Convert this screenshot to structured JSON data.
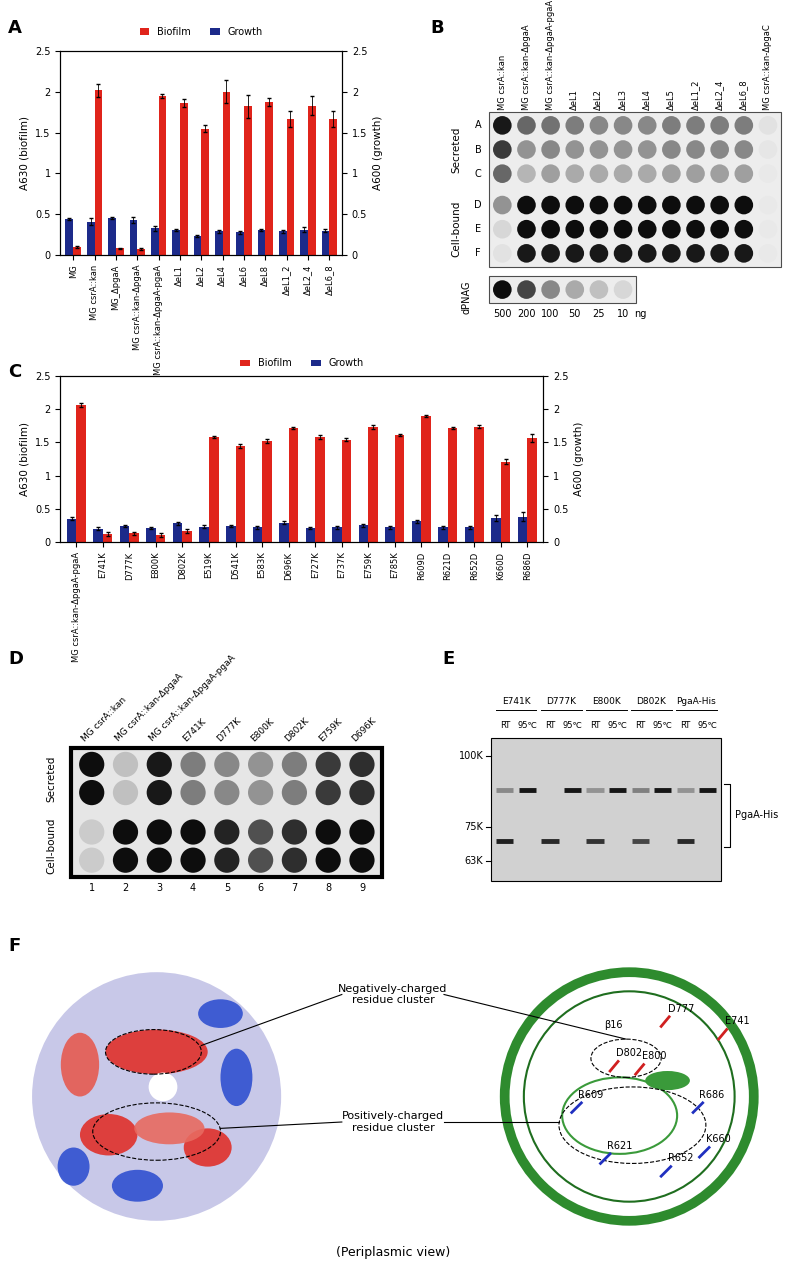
{
  "panel_labels": [
    "A",
    "B",
    "C",
    "D",
    "E",
    "F"
  ],
  "chart_data": [
    {
      "type": "bar",
      "categories": [
        "MG",
        "MG csrA::kan",
        "MG_ΔpgaA",
        "MG csrA::kan-ΔpgaA",
        "MG csrA::kan-ΔpgaA-pgaA",
        "ΔeL1",
        "ΔeL2",
        "ΔeL4",
        "ΔeL6",
        "ΔeL8",
        "ΔeL1_2",
        "ΔeL2_4",
        "ΔeL6_8"
      ],
      "ylabel": "A630 (biofilm)",
      "y2label": "A600 (growth)",
      "ylim": [
        0,
        2.5
      ],
      "yticks": [
        0,
        0.5,
        1,
        1.5,
        2,
        2.5
      ],
      "y2lim": [
        0,
        2.5
      ],
      "y2ticks": [
        0,
        0.5,
        1,
        1.5,
        2,
        2.5
      ],
      "legend": "upper center",
      "series": [
        {
          "name": "Biofilm",
          "color": "#e0241b",
          "values": [
            0.1,
            2.02,
            0.08,
            0.07,
            1.95,
            1.86,
            1.55,
            2.0,
            1.82,
            1.88,
            1.67,
            1.83,
            1.67
          ],
          "errors": [
            0.01,
            0.08,
            0.01,
            0.01,
            0.02,
            0.05,
            0.04,
            0.14,
            0.14,
            0.05,
            0.1,
            0.12,
            0.1
          ]
        },
        {
          "name": "Growth",
          "color": "#1c2a8a",
          "axis": "y2",
          "values": [
            0.44,
            0.41,
            0.45,
            0.43,
            0.33,
            0.31,
            0.23,
            0.29,
            0.28,
            0.31,
            0.29,
            0.31,
            0.3
          ],
          "errors": [
            0.01,
            0.04,
            0.01,
            0.04,
            0.03,
            0.01,
            0.01,
            0.02,
            0.02,
            0.01,
            0.02,
            0.03,
            0.02
          ]
        }
      ]
    },
    {
      "type": "bar",
      "categories": [
        "MG csrA::kan-ΔpgaA-pgaA",
        "E741K",
        "D777K",
        "E800K",
        "D802K",
        "E519K",
        "D541K",
        "E583K",
        "D696K",
        "E727K",
        "E737K",
        "E759K",
        "E785K",
        "R609D",
        "R621D",
        "R652D",
        "K660D",
        "R686D"
      ],
      "ylabel": "A630 (biofilm)",
      "y2label": "A600 (growth)",
      "ylim": [
        0,
        2.5
      ],
      "yticks": [
        0,
        0.5,
        1,
        1.5,
        2,
        2.5
      ],
      "y2lim": [
        0,
        2.5
      ],
      "y2ticks": [
        0,
        0.5,
        1,
        1.5,
        2,
        2.5
      ],
      "legend": "upper center",
      "series": [
        {
          "name": "Biofilm",
          "color": "#e0241b",
          "values": [
            2.06,
            0.12,
            0.13,
            0.1,
            0.17,
            1.58,
            1.45,
            1.52,
            1.72,
            1.58,
            1.54,
            1.73,
            1.61,
            1.9,
            1.72,
            1.74,
            1.21,
            1.57
          ],
          "errors": [
            0.03,
            0.03,
            0.02,
            0.03,
            0.03,
            0.02,
            0.03,
            0.03,
            0.02,
            0.03,
            0.02,
            0.03,
            0.02,
            0.02,
            0.02,
            0.02,
            0.04,
            0.06
          ]
        },
        {
          "name": "Growth",
          "color": "#1c2a8a",
          "axis": "y2",
          "values": [
            0.35,
            0.2,
            0.24,
            0.21,
            0.28,
            0.23,
            0.24,
            0.22,
            0.29,
            0.21,
            0.22,
            0.25,
            0.22,
            0.31,
            0.22,
            0.22,
            0.36,
            0.38
          ],
          "errors": [
            0.02,
            0.02,
            0.02,
            0.02,
            0.02,
            0.02,
            0.02,
            0.02,
            0.02,
            0.02,
            0.02,
            0.02,
            0.02,
            0.02,
            0.02,
            0.02,
            0.05,
            0.07
          ]
        }
      ]
    }
  ],
  "dot_blot_B": {
    "columns": [
      "MG csrA::kan",
      "MG csrA::kan-ΔpgaA",
      "MG csrA::kan-ΔpgaA-pgaA",
      "ΔeL1",
      "ΔeL2",
      "ΔeL3",
      "ΔeL4",
      "ΔeL5",
      "ΔeL1_2",
      "ΔeL2_4",
      "ΔeL6_8",
      "MG csrA::kan-ΔpgaC"
    ],
    "groups": [
      {
        "name": "Secreted",
        "rows": [
          "A",
          "B",
          "C"
        ]
      },
      {
        "name": "Cell-bound",
        "rows": [
          "D",
          "E",
          "F"
        ]
      }
    ],
    "signal": [
      [
        0.95,
        0.6,
        0.55,
        0.5,
        0.45,
        0.45,
        0.45,
        0.5,
        0.5,
        0.5,
        0.5,
        0.05
      ],
      [
        0.8,
        0.4,
        0.45,
        0.4,
        0.4,
        0.4,
        0.4,
        0.45,
        0.45,
        0.45,
        0.45,
        0.03
      ],
      [
        0.6,
        0.25,
        0.35,
        0.3,
        0.3,
        0.3,
        0.3,
        0.35,
        0.35,
        0.35,
        0.35,
        0.02
      ],
      [
        0.4,
        1,
        1,
        1,
        1,
        1,
        1,
        1,
        1,
        1,
        1,
        0.02
      ],
      [
        0.1,
        1,
        1,
        1,
        1,
        1,
        1,
        1,
        1,
        1,
        1,
        0.02
      ],
      [
        0.05,
        0.95,
        0.95,
        0.95,
        0.95,
        0.95,
        0.95,
        0.95,
        0.95,
        0.95,
        0.95,
        0.02
      ]
    ],
    "standard": {
      "name": "dPNAG",
      "amounts": [
        500,
        200,
        100,
        50,
        25,
        10
      ],
      "unit": "ng",
      "signal": [
        1,
        0.75,
        0.45,
        0.3,
        0.2,
        0.1
      ]
    }
  },
  "dot_blot_D": {
    "columns": [
      "MG csrA::kan",
      "MG csrA::kan-ΔpgaA",
      "MG csrA::kan-ΔpgaA-pgaA",
      "E741K",
      "D777K",
      "E800K",
      "D802K",
      "E759K",
      "D696K"
    ],
    "lane_numbers": [
      1,
      2,
      3,
      4,
      5,
      6,
      7,
      8,
      9
    ],
    "groups": [
      {
        "name": "Secreted",
        "signal": [
          [
            1,
            0.2,
            0.95,
            0.5,
            0.45,
            0.4,
            0.5,
            0.8,
            0.85
          ],
          [
            1,
            0.2,
            0.95,
            0.5,
            0.45,
            0.4,
            0.5,
            0.8,
            0.85
          ]
        ]
      },
      {
        "name": "Cell-bound",
        "signal": [
          [
            0.15,
            1,
            1,
            1,
            0.9,
            0.7,
            0.85,
            1,
            1
          ],
          [
            0.15,
            1,
            1,
            1,
            0.9,
            0.7,
            0.85,
            1,
            1
          ]
        ]
      }
    ]
  },
  "western_E": {
    "groups": [
      "E741K",
      "D777K",
      "E800K",
      "D802K",
      "PgaA-His"
    ],
    "conditions": [
      "RT",
      "95℃"
    ],
    "markers": [
      {
        "label": "100K",
        "kda": 100
      },
      {
        "label": "75K",
        "kda": 75
      },
      {
        "label": "63K",
        "kda": 63
      }
    ],
    "kda_range": [
      56,
      106
    ],
    "band_label": "PgaA-His",
    "band_range": [
      68,
      90
    ],
    "lanes": [
      {
        "bands": [
          {
            "kda": 88,
            "signal": 0.35
          },
          {
            "kda": 70,
            "signal": 0.9
          }
        ]
      },
      {
        "bands": [
          {
            "kda": 88,
            "signal": 0.95
          }
        ]
      },
      {
        "bands": [
          {
            "kda": 70,
            "signal": 0.85
          }
        ]
      },
      {
        "bands": [
          {
            "kda": 88,
            "signal": 0.95
          }
        ]
      },
      {
        "bands": [
          {
            "kda": 88,
            "signal": 0.3
          },
          {
            "kda": 70,
            "signal": 0.8
          }
        ]
      },
      {
        "bands": [
          {
            "kda": 88,
            "signal": 0.95
          }
        ]
      },
      {
        "bands": [
          {
            "kda": 88,
            "signal": 0.4
          },
          {
            "kda": 70,
            "signal": 0.7
          }
        ]
      },
      {
        "bands": [
          {
            "kda": 88,
            "signal": 0.95
          }
        ]
      },
      {
        "bands": [
          {
            "kda": 88,
            "signal": 0.3
          },
          {
            "kda": 70,
            "signal": 0.85
          }
        ]
      },
      {
        "bands": [
          {
            "kda": 88,
            "signal": 0.95
          }
        ]
      }
    ]
  },
  "structure_F": {
    "negative_cluster": {
      "label": "Negatively-charged\nresidue cluster",
      "residues": [
        "D777",
        "E741",
        "D802",
        "E800"
      ]
    },
    "positive_cluster": {
      "label": "Positively-charged\nresidue cluster",
      "residues": [
        "R686",
        "R609",
        "K660",
        "R621",
        "R652"
      ]
    },
    "strand_label": "β16",
    "view": "(Periplasmic view)"
  }
}
